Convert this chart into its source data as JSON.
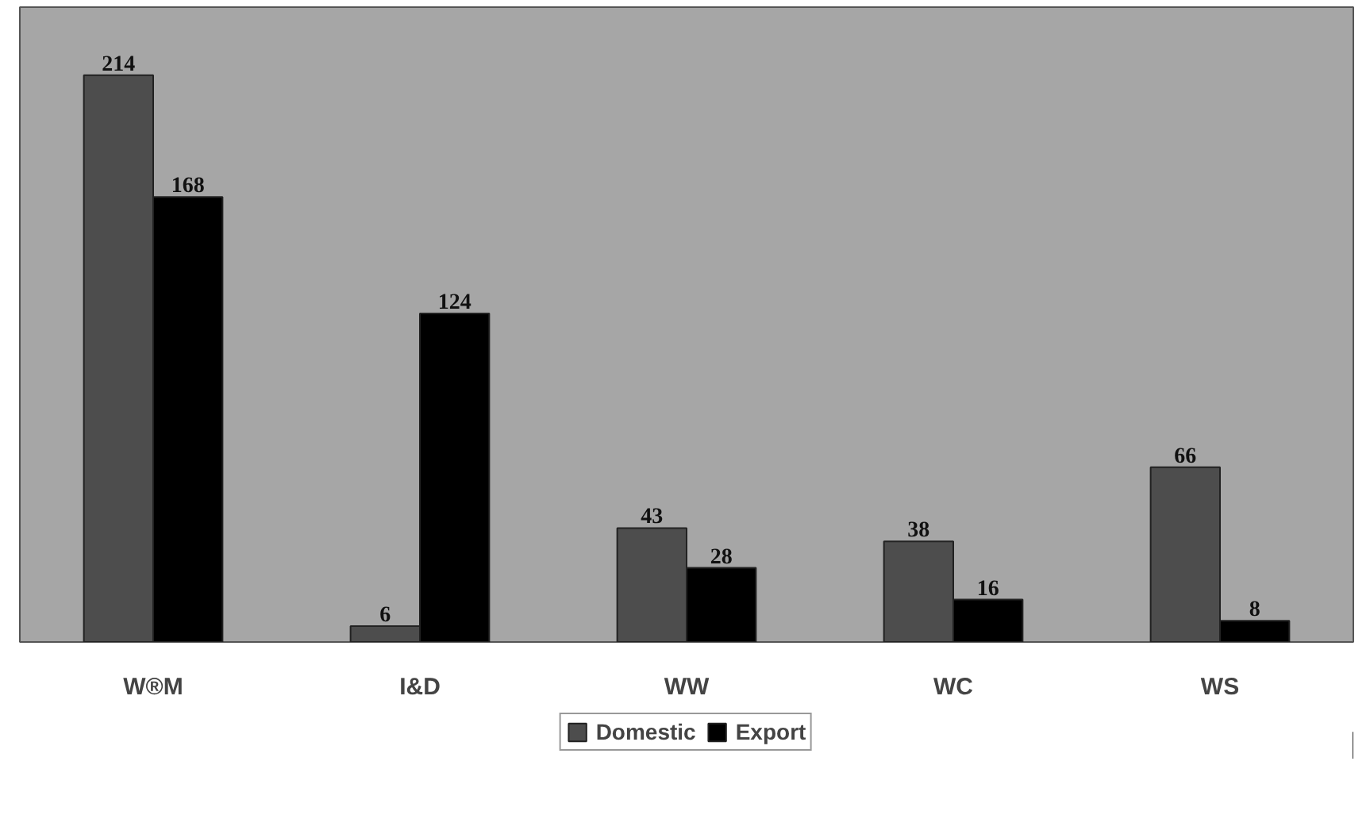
{
  "chart_data": {
    "type": "bar",
    "categories": [
      "W®M",
      "I&D",
      "WW",
      "WC",
      "WS"
    ],
    "series": [
      {
        "name": "Domestic",
        "color": "#4d4d4d",
        "values": [
          214,
          6,
          43,
          38,
          66
        ]
      },
      {
        "name": "Export",
        "color": "#000000",
        "values": [
          168,
          124,
          28,
          16,
          8
        ]
      }
    ],
    "data_labels": true,
    "legend": "bottom"
  }
}
